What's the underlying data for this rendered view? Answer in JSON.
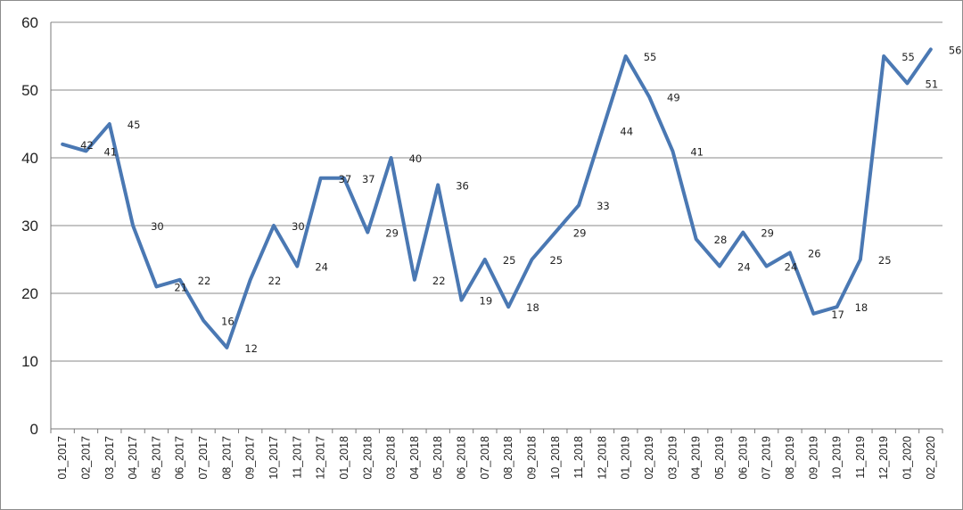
{
  "chart_data": {
    "type": "line",
    "title": "",
    "xlabel": "",
    "ylabel": "",
    "ylim": [
      0,
      60
    ],
    "yticks": [
      0,
      10,
      20,
      30,
      40,
      50,
      60
    ],
    "grid": "horizontal",
    "legend": "none",
    "line_color": "#4a78b3",
    "categories": [
      "01_2017",
      "02_2017",
      "03_2017",
      "04_2017",
      "05_2017",
      "06_2017",
      "07_2017",
      "08_2017",
      "09_2017",
      "10_2017",
      "11_2017",
      "12_2017",
      "01_2018",
      "02_2018",
      "03_2018",
      "04_2018",
      "05_2018",
      "06_2018",
      "07_2018",
      "08_2018",
      "09_2018",
      "10_2018",
      "11_2018",
      "12_2018",
      "01_2019",
      "02_2019",
      "03_2019",
      "04_2019",
      "05_2019",
      "06_2019",
      "07_2019",
      "08_2019",
      "09_2019",
      "10_2019",
      "11_2019",
      "12_2019",
      "01_2020",
      "02_2020"
    ],
    "values": [
      42,
      41,
      45,
      30,
      21,
      22,
      16,
      12,
      22,
      30,
      24,
      37,
      37,
      29,
      40,
      22,
      36,
      19,
      25,
      18,
      25,
      29,
      33,
      44,
      55,
      49,
      41,
      28,
      24,
      29,
      24,
      26,
      17,
      18,
      25,
      55,
      51,
      56
    ]
  }
}
